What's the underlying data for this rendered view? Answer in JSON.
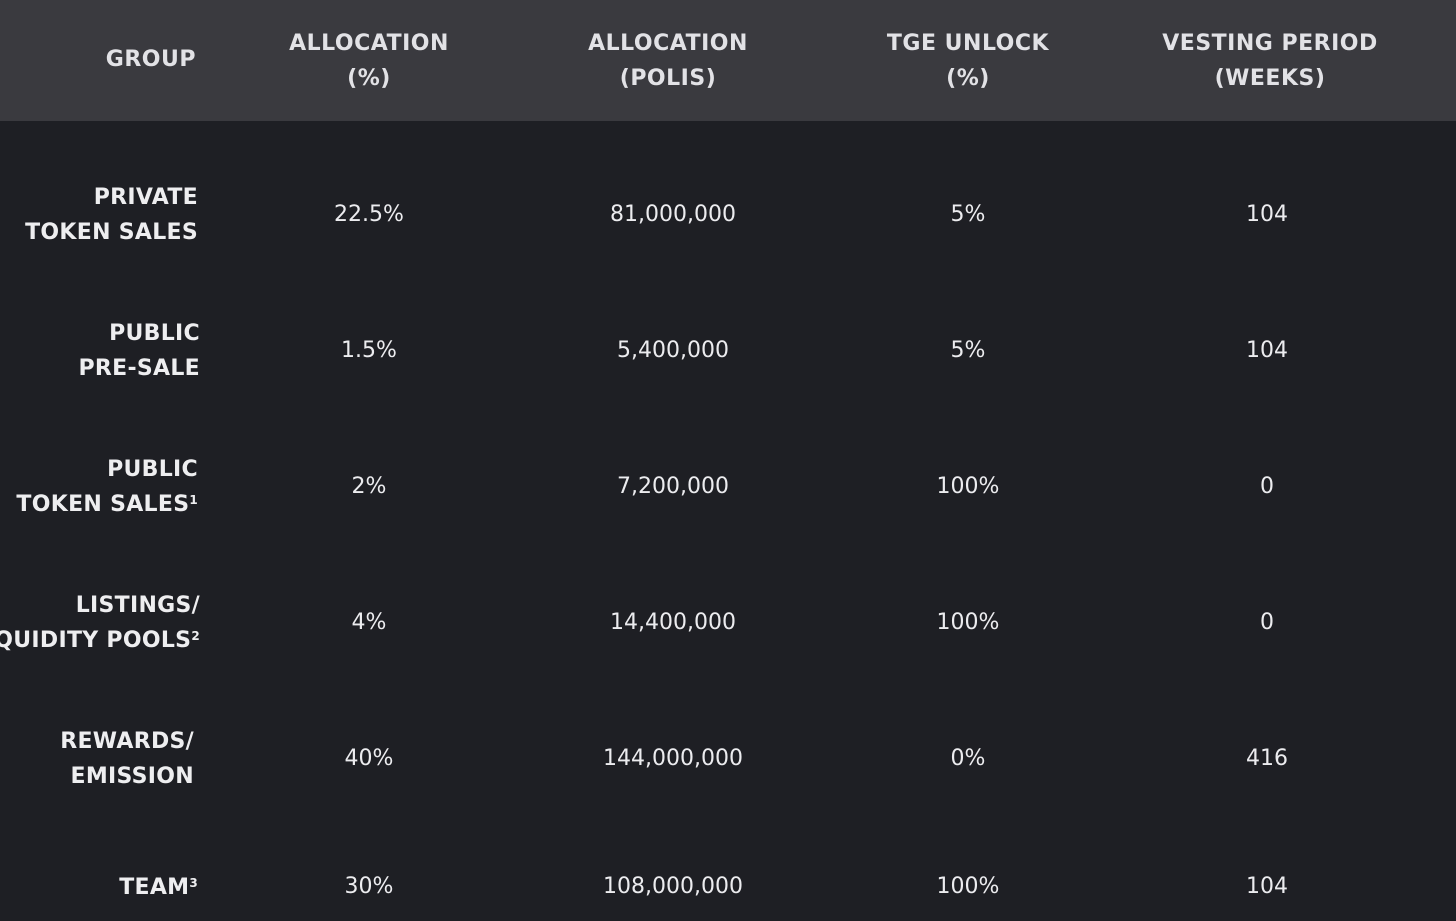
{
  "columns": [
    {
      "line1": "GROUP"
    },
    {
      "line1": "ALLOCATION",
      "line2": "(%)"
    },
    {
      "line1": "ALLOCATION",
      "line2": "(POLIS)"
    },
    {
      "line1": "TGE UNLOCK",
      "line2": "(%)"
    },
    {
      "line1": "VESTING PERIOD",
      "line2": "(WEEKS)"
    }
  ],
  "rows": [
    {
      "group_line1": "PRIVATE",
      "group_line2": "TOKEN SALES",
      "sup": "",
      "alloc_pct": "22.5%",
      "alloc_polis": "81,000,000",
      "tge_unlock": "5%",
      "vesting_weeks": "104"
    },
    {
      "group_line1": "PUBLIC",
      "group_line2": "PRE-SALE",
      "sup": "",
      "alloc_pct": "1.5%",
      "alloc_polis": "5,400,000",
      "tge_unlock": "5%",
      "vesting_weeks": "104"
    },
    {
      "group_line1": "PUBLIC",
      "group_line2": "TOKEN SALES",
      "sup": "1",
      "alloc_pct": "2%",
      "alloc_polis": "7,200,000",
      "tge_unlock": "100%",
      "vesting_weeks": "0"
    },
    {
      "group_line1": "LISTINGS/",
      "group_line2": "LIQUIDITY POOLS",
      "sup": "2",
      "alloc_pct": "4%",
      "alloc_polis": "14,400,000",
      "tge_unlock": "100%",
      "vesting_weeks": "0"
    },
    {
      "group_line1": "REWARDS/",
      "group_line2": "EMISSION",
      "sup": "",
      "alloc_pct": "40%",
      "alloc_polis": "144,000,000",
      "tge_unlock": "0%",
      "vesting_weeks": "416"
    },
    {
      "group_line1": "",
      "group_line2": "TEAM",
      "sup": "3",
      "alloc_pct": "30%",
      "alloc_polis": "108,000,000",
      "tge_unlock": "100%",
      "vesting_weeks": "104"
    }
  ]
}
